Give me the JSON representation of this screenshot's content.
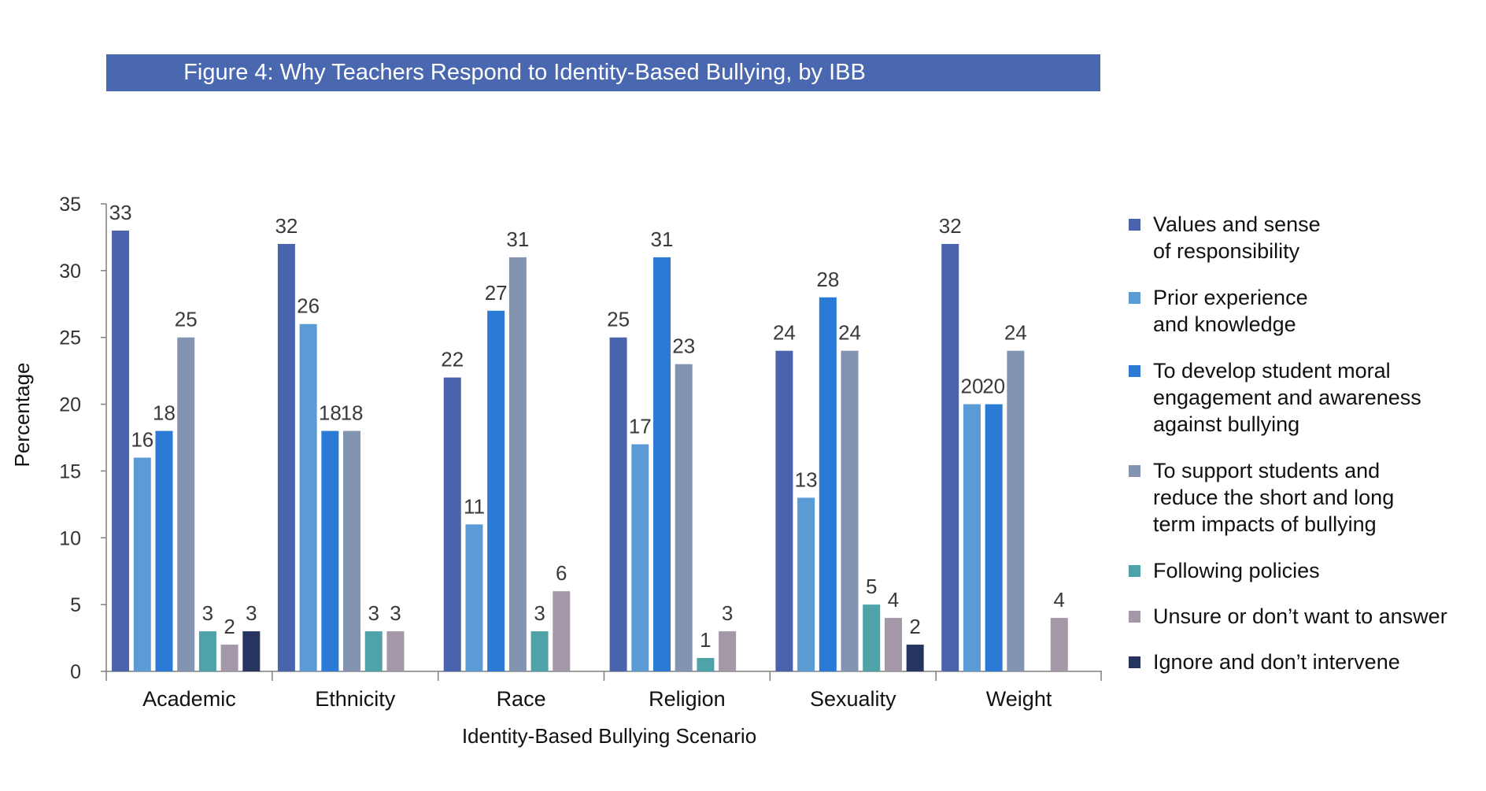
{
  "chart_data": {
    "type": "bar",
    "title": "Figure 4: Why Teachers Respond to Identity-Based Bullying, by IBB",
    "xlabel": "Identity-Based Bullying Scenario",
    "ylabel": "Percentage",
    "ylim": [
      0,
      35
    ],
    "yticks": [
      "0",
      "5",
      "10",
      "15",
      "20",
      "25",
      "30",
      "35"
    ],
    "categories": [
      "Academic",
      "Ethnicity",
      "Race",
      "Religion",
      "Sexuality",
      "Weight"
    ],
    "legend_position": "right",
    "series": [
      {
        "name": "Values and sense\nof responsibility",
        "color": "#4a63ad",
        "values": [
          33,
          32,
          22,
          25,
          24,
          32
        ]
      },
      {
        "name": "Prior experience\nand knowledge",
        "color": "#5b9bd5",
        "values": [
          16,
          26,
          11,
          17,
          13,
          20
        ]
      },
      {
        "name": "To develop student moral\nengagement and awareness\nagainst bullying",
        "color": "#2b7bd6",
        "values": [
          18,
          18,
          27,
          31,
          28,
          20
        ]
      },
      {
        "name": "To support students and\nreduce the short and long\nterm impacts of bullying",
        "color": "#8394b0",
        "values": [
          25,
          18,
          31,
          23,
          24,
          24
        ]
      },
      {
        "name": "Following policies",
        "color": "#4fa3a8",
        "values": [
          3,
          3,
          3,
          1,
          5,
          null
        ]
      },
      {
        "name": "Unsure or don’t want to answer",
        "color": "#a497a8",
        "values": [
          2,
          3,
          6,
          3,
          4,
          4
        ]
      },
      {
        "name": "Ignore and don’t intervene",
        "color": "#26355f",
        "values": [
          3,
          null,
          null,
          null,
          2,
          null
        ]
      }
    ]
  }
}
